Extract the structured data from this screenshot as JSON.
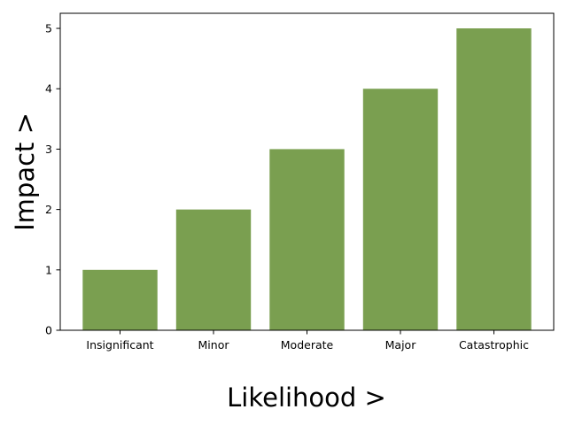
{
  "chart_data": {
    "type": "bar",
    "title": "",
    "xlabel": "Likelihood >",
    "ylabel": "Impact >",
    "categories": [
      "Insignificant",
      "Minor",
      "Moderate",
      "Major",
      "Catastrophic"
    ],
    "values": [
      1,
      2,
      3,
      4,
      5
    ],
    "ylim": [
      0,
      5.25
    ],
    "yticks": [
      0,
      1,
      2,
      3,
      4,
      5
    ],
    "bar_color": "#7a9f50",
    "grid": false,
    "legend": "none"
  }
}
